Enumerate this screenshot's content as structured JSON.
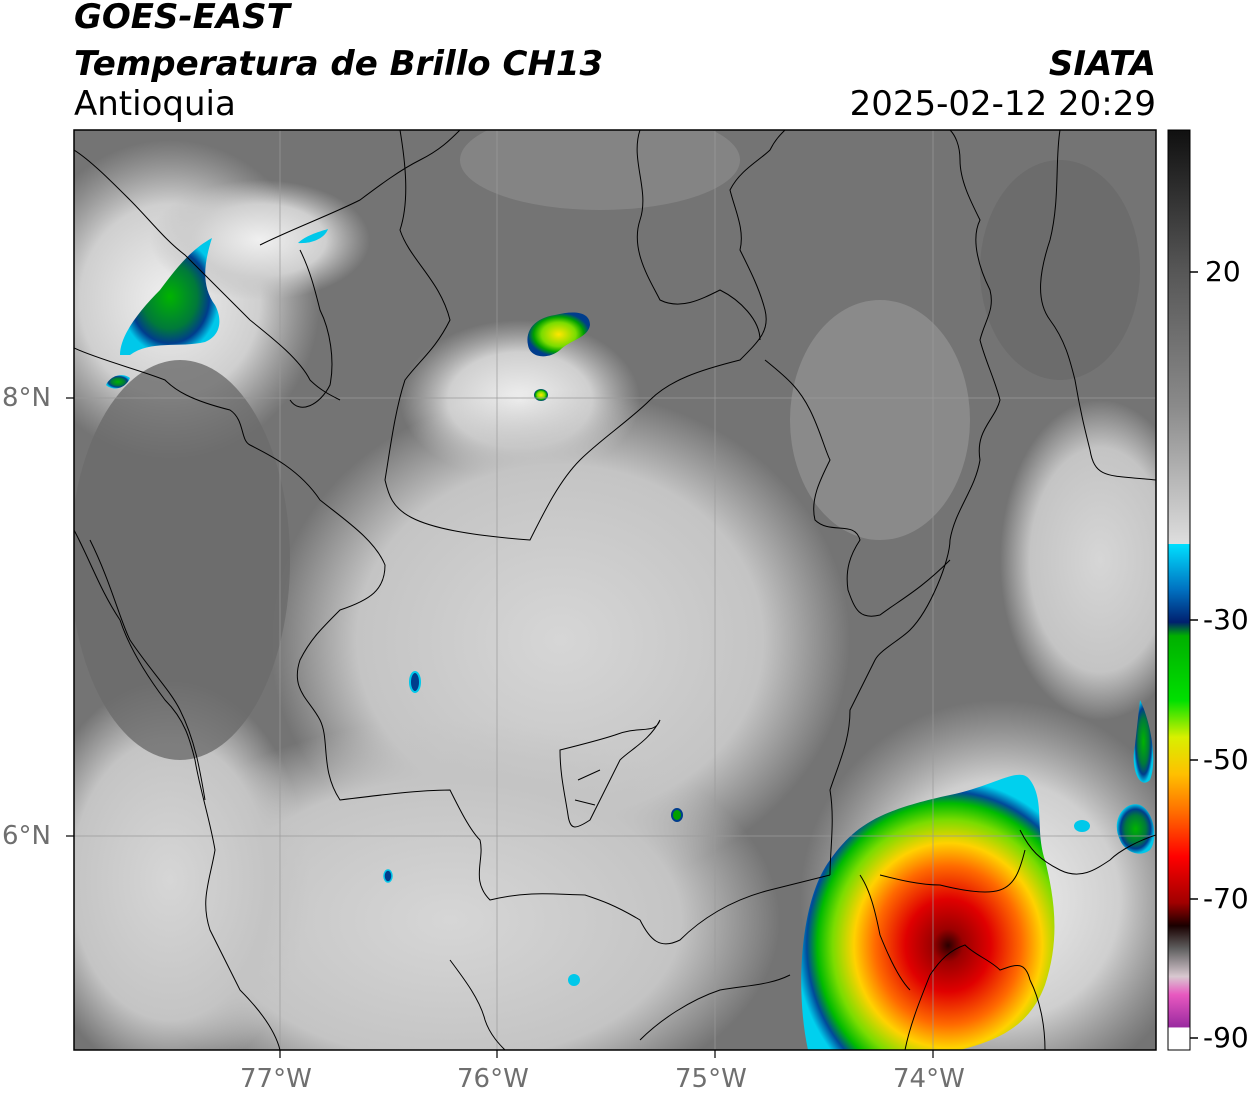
{
  "header": {
    "satellite": "GOES-EAST",
    "product": "Temperatura de Brillo CH13",
    "region": "Antioquia",
    "agency": "SIATA",
    "datetime": "2025-02-12 20:29"
  },
  "axes": {
    "lat_labels": [
      "8°N",
      "6°N"
    ],
    "lon_labels": [
      "77°W",
      "76°W",
      "75°W",
      "74°W"
    ]
  },
  "colorbar": {
    "tick_labels": [
      "20",
      "-30",
      "-50",
      "-70",
      "-90"
    ],
    "scale_colors": [
      "#1a1a1a",
      "#7a7a7a",
      "#f4f4f4",
      "#00d8f0",
      "#003d8c",
      "#00c800",
      "#ffe600",
      "#ff7a00",
      "#d40000",
      "#3a0000",
      "#d6c3cf",
      "#e84fbf",
      "#8a1f9a",
      "#ffffff"
    ]
  },
  "map_colors": {
    "cloud_cold": "#d40000",
    "cloud_core": "#3a0000",
    "cloud_warm_edge": "#00c800",
    "cloud_cyan": "#00d8f0",
    "land_dark": "#6f6f6f",
    "land_light": "#c9c9c9"
  }
}
